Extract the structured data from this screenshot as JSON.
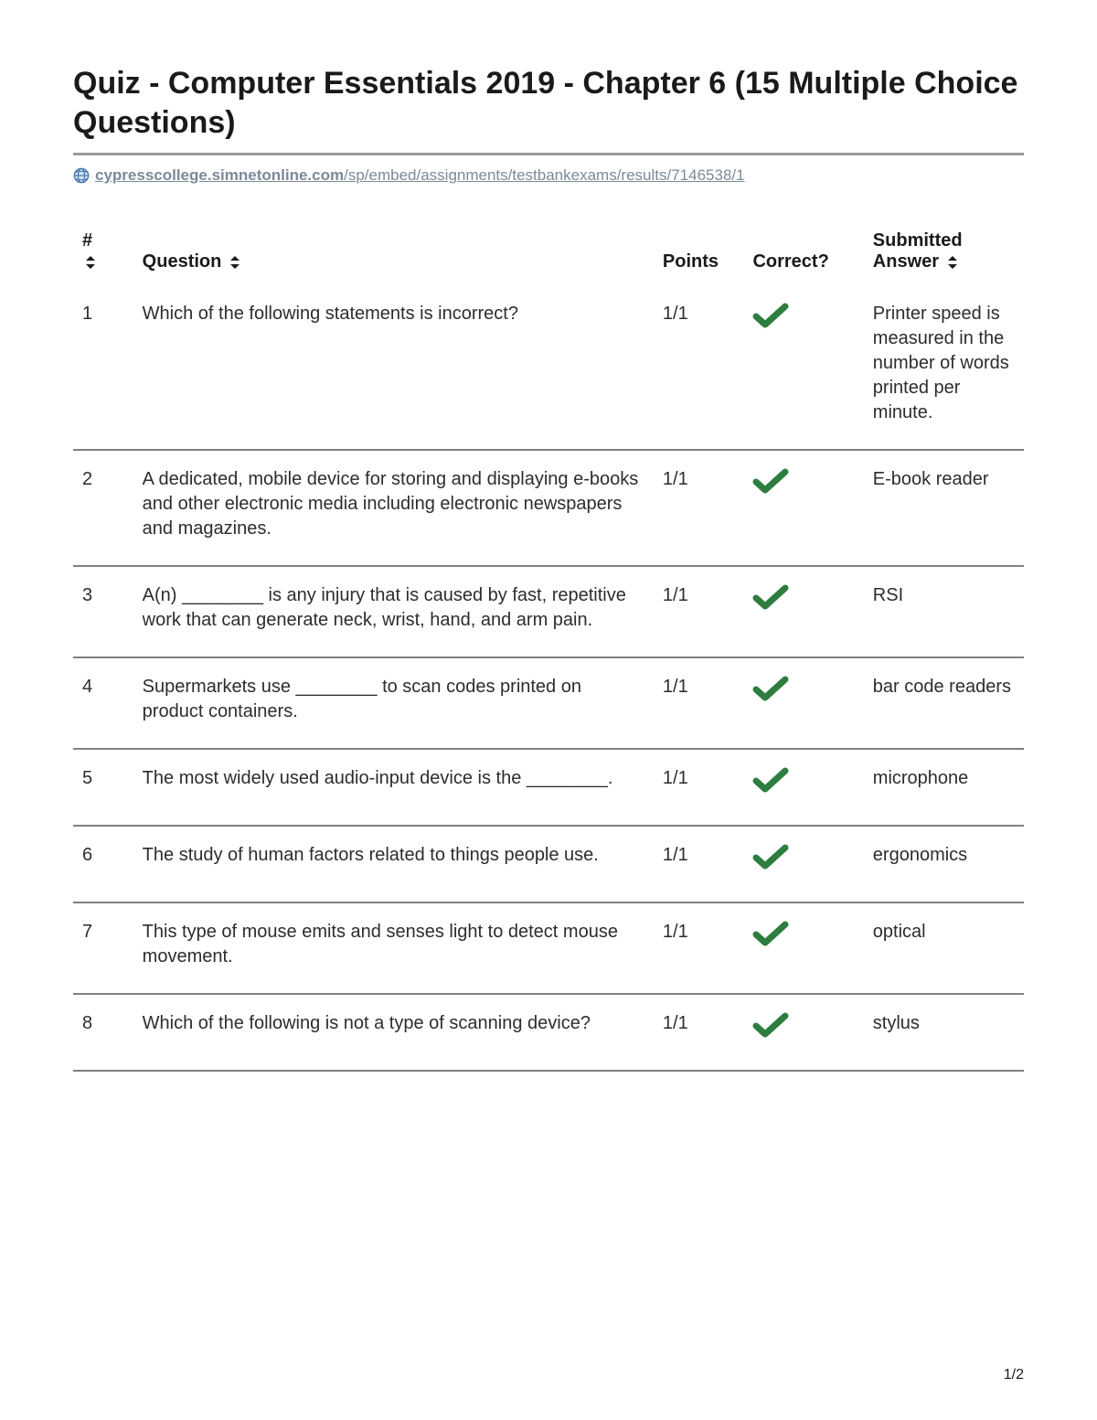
{
  "title": "Quiz - Computer Essentials 2019 - Chapter 6 (15 Multiple Choice Questions)",
  "url": {
    "bold_part": "cypresscollege.simnetonline.com",
    "rest_part": "/sp/embed/assignments/testbankexams/results/7146538/1"
  },
  "columns": {
    "num": "#",
    "question": "Question",
    "points": "Points",
    "correct": "Correct?",
    "answer": "Submitted Answer"
  },
  "rows": [
    {
      "n": "1",
      "q": "Which of the following statements is incorrect?",
      "pts": "1/1",
      "ok": true,
      "ans": "Printer speed is measured in the number of words printed per minute."
    },
    {
      "n": "2",
      "q": "A dedicated, mobile device for storing and displaying e-books and other electronic media including electronic newspapers and magazines.",
      "pts": "1/1",
      "ok": true,
      "ans": "E-book reader"
    },
    {
      "n": "3",
      "q": "A(n) ________ is any injury that is caused by fast, repetitive work that can generate neck, wrist, hand, and arm pain.",
      "pts": "1/1",
      "ok": true,
      "ans": "RSI"
    },
    {
      "n": "4",
      "q": "Supermarkets use ________ to scan codes printed on product containers.",
      "pts": "1/1",
      "ok": true,
      "ans": "bar code readers"
    },
    {
      "n": "5",
      "q": "The most widely used audio-input device is the ________.",
      "pts": "1/1",
      "ok": true,
      "ans": "microphone"
    },
    {
      "n": "6",
      "q": "The study of human factors related to things people use.",
      "pts": "1/1",
      "ok": true,
      "ans": "ergonomics"
    },
    {
      "n": "7",
      "q": "This type of mouse emits and senses light to detect mouse movement.",
      "pts": "1/1",
      "ok": true,
      "ans": "optical"
    },
    {
      "n": "8",
      "q": "Which of the following is not a type of scanning device?",
      "pts": "1/1",
      "ok": true,
      "ans": "stylus"
    }
  ],
  "page_number": "1/2",
  "colors": {
    "check": "#2e7d40",
    "globe_stroke": "#3a6ea5",
    "globe_fill": "#cfe3f5",
    "sort_fill": "#1a1a1a"
  }
}
